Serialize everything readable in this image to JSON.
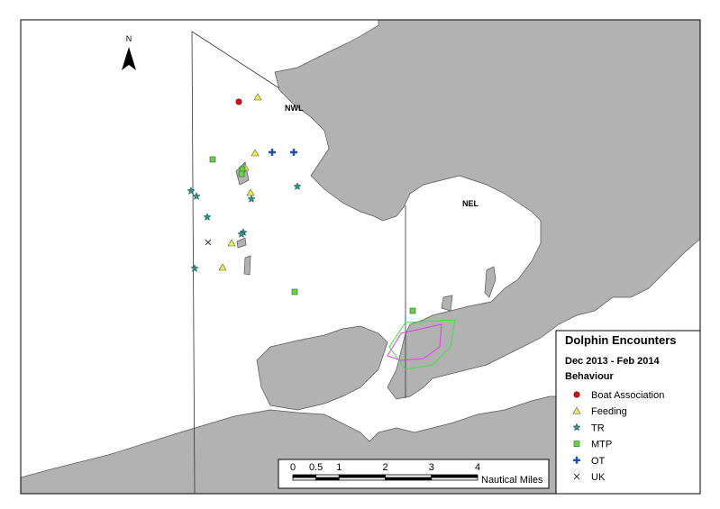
{
  "map": {
    "north": "N",
    "area_labels": [
      "NWL",
      "NEL"
    ]
  },
  "legend": {
    "title": "Dolphin Encounters",
    "subtitle": "Dec 2013 - Feb 2014",
    "heading": "Behaviour",
    "entries": [
      "Boat Association",
      "Feeding",
      "TR",
      "MTP",
      "OT",
      "UK"
    ]
  },
  "scale_bar": {
    "ticks": [
      0,
      0.5,
      1,
      2,
      3,
      4
    ],
    "unit": "Nautical Miles"
  }
}
